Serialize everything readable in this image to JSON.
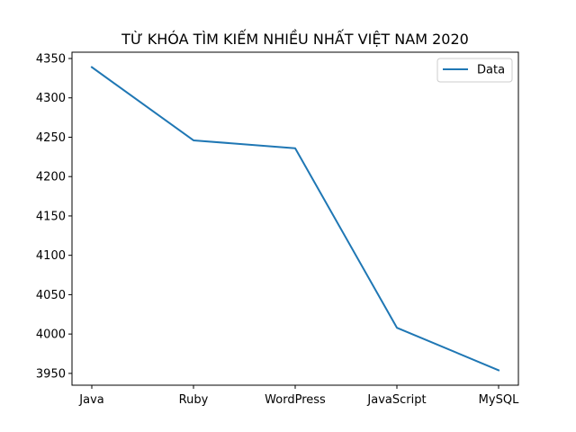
{
  "chart_data": {
    "type": "line",
    "title": "TỪ KHÓA TÌM KIẾM NHIỀU NHẤT VIỆT NAM 2020",
    "xlabel": "",
    "ylabel": "",
    "categories": [
      "Java",
      "Ruby",
      "WordPress",
      "JavaScript",
      "MySQL"
    ],
    "series": [
      {
        "name": "Data",
        "values": [
          4339,
          4246,
          4236,
          4008,
          3954
        ],
        "color": "#1f77b4"
      }
    ],
    "ylim": [
      3935,
      4358
    ],
    "yticks": [
      3950,
      4000,
      4050,
      4100,
      4150,
      4200,
      4250,
      4300,
      4350
    ],
    "grid": false,
    "legend_position": "top-right"
  }
}
